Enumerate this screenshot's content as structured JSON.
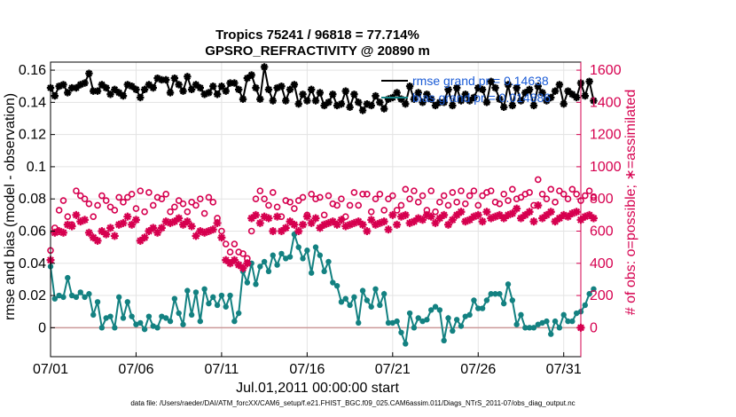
{
  "chart_data": {
    "type": "line",
    "title": "Tropics 75241 / 96818 = 77.714%",
    "subtitle": "GPSRO_REFRACTIVITY @ 20890 m",
    "xlabel": "Jul.01,2011 00:00:00 start",
    "ylabel": "rmse and bias (model - observation)",
    "y2label": "# of obs: o=possible; ∗=assimilated",
    "x_ticks": [
      "07/01",
      "07/06",
      "07/11",
      "07/16",
      "07/21",
      "07/26",
      "07/31"
    ],
    "x_tick_days": [
      0,
      5,
      10,
      15,
      20,
      25,
      30
    ],
    "xlim": [
      0,
      31
    ],
    "ylim": [
      -0.018,
      0.165
    ],
    "y_ticks": [
      "0.16",
      "0.14",
      "0.12",
      "0.1",
      "0.08",
      "0.06",
      "0.04",
      "0.02",
      "0"
    ],
    "y_tick_values": [
      0.16,
      0.14,
      0.12,
      0.1,
      0.08,
      0.06,
      0.04,
      0.02,
      0
    ],
    "y2lim": [
      -180,
      1650
    ],
    "y2_ticks": [
      "1600",
      "1400",
      "1200",
      "1000",
      "800",
      "600",
      "400",
      "200",
      "0"
    ],
    "y2_tick_values": [
      1600,
      1400,
      1200,
      1000,
      800,
      600,
      400,
      200,
      0
    ],
    "legend": [
      "rmse grand pr = 0.14638",
      "bias grand pr = 0.014886"
    ],
    "footnote": "data file: /Users/raeder/DAI/ATM_forcXX/CAM6_setup/f.e21.FHIST_BGC.f09_025.CAM6assim.011/Diags_NTrS_2011-07/obs_diag_output.nc",
    "grid": true,
    "step_days": 0.25,
    "series": [
      {
        "name": "rmse",
        "color": "#000000",
        "marker": "star",
        "axis": "left",
        "values": [
          0.149,
          0.144,
          0.15,
          0.151,
          0.146,
          0.149,
          0.149,
          0.151,
          0.152,
          0.158,
          0.147,
          0.147,
          0.151,
          0.149,
          0.145,
          0.148,
          0.146,
          0.144,
          0.151,
          0.15,
          0.148,
          0.143,
          0.148,
          0.151,
          0.149,
          0.155,
          0.154,
          0.154,
          0.146,
          0.155,
          0.151,
          0.147,
          0.156,
          0.148,
          0.151,
          0.149,
          0.145,
          0.146,
          0.15,
          0.145,
          0.15,
          0.147,
          0.152,
          0.152,
          0.148,
          0.142,
          0.155,
          0.157,
          0.149,
          0.142,
          0.162,
          0.148,
          0.141,
          0.149,
          0.15,
          0.141,
          0.148,
          0.151,
          0.139,
          0.145,
          0.141,
          0.148,
          0.141,
          0.146,
          0.138,
          0.14,
          0.145,
          0.138,
          0.139,
          0.147,
          0.137,
          0.145,
          0.14,
          0.135,
          0.139,
          0.138,
          0.144,
          0.14,
          0.136,
          0.142,
          0.143,
          0.146,
          0.142,
          0.139,
          0.15,
          0.142,
          0.146,
          0.14,
          0.145,
          0.142,
          0.138,
          0.14,
          0.14,
          0.148,
          0.138,
          0.149,
          0.141,
          0.145,
          0.141,
          0.143,
          0.149,
          0.148,
          0.14,
          0.153,
          0.149,
          0.142,
          0.137,
          0.151,
          0.138,
          0.149,
          0.141,
          0.146,
          0.148,
          0.138,
          0.15,
          0.146,
          0.141,
          0.143,
          0.147,
          0.151,
          0.139,
          0.147,
          0.145,
          0.143,
          0.152,
          0.144,
          0.153,
          0.141
        ]
      },
      {
        "name": "bias",
        "color": "#138181",
        "marker": "dot",
        "axis": "left",
        "values": [
          0.038,
          0.018,
          0.02,
          0.019,
          0.031,
          0.02,
          0.019,
          0.022,
          0.019,
          0.021,
          0.008,
          0.016,
          0.0,
          0.006,
          0.007,
          0.0,
          0.019,
          0.006,
          0.016,
          0.007,
          0.002,
          0.003,
          -0.001,
          0.007,
          0.001,
          0.0,
          0.007,
          0.006,
          0.004,
          0.018,
          0.009,
          0.002,
          0.023,
          0.008,
          0.022,
          0.004,
          0.024,
          0.015,
          0.019,
          0.014,
          0.02,
          0.013,
          0.02,
          0.004,
          0.009,
          0.035,
          0.028,
          0.04,
          0.027,
          0.038,
          0.041,
          0.035,
          0.045,
          0.039,
          0.046,
          0.043,
          0.044,
          0.058,
          0.05,
          0.043,
          0.048,
          0.034,
          0.05,
          0.045,
          0.035,
          0.041,
          0.028,
          0.026,
          0.016,
          0.018,
          0.014,
          0.019,
          0.003,
          0.023,
          0.017,
          0.013,
          0.024,
          0.014,
          0.021,
          0.003,
          0.003,
          0.004,
          -0.003,
          -0.01,
          0.009,
          0.0,
          0.006,
          0.004,
          0.005,
          0.011,
          0.013,
          0.011,
          -0.008,
          0.006,
          -0.002,
          0.005,
          0.001,
          0.007,
          0.008,
          0.017,
          0.012,
          0.012,
          0.017,
          0.021,
          0.021,
          0.021,
          0.015,
          0.027,
          0.017,
          0.002,
          0.008,
          0.0,
          0.0,
          0.0,
          0.002,
          0.003,
          0.004,
          -0.004,
          0.004,
          0.0,
          0.008,
          0.004,
          0.004,
          0.009,
          0.01,
          0.014,
          0.021,
          0.024
        ]
      },
      {
        "name": "possible",
        "color": "#d6004f",
        "marker": "circle",
        "axis": "right",
        "values": [
          480,
          620,
          730,
          790,
          690,
          640,
          850,
          820,
          800,
          770,
          690,
          760,
          820,
          790,
          750,
          730,
          810,
          780,
          810,
          830,
          740,
          850,
          720,
          840,
          760,
          810,
          800,
          830,
          720,
          750,
          790,
          770,
          720,
          780,
          760,
          800,
          710,
          810,
          780,
          680,
          600,
          520,
          470,
          520,
          470,
          460,
          430,
          600,
          800,
          850,
          800,
          760,
          840,
          750,
          690,
          790,
          780,
          740,
          790,
          810,
          700,
          830,
          800,
          810,
          700,
          820,
          770,
          760,
          800,
          690,
          760,
          840,
          760,
          830,
          830,
          720,
          800,
          830,
          730,
          800,
          820,
          730,
          760,
          860,
          800,
          850,
          780,
          820,
          730,
          850,
          720,
          780,
          820,
          760,
          840,
          780,
          850,
          770,
          820,
          850,
          760,
          820,
          840,
          850,
          780,
          770,
          830,
          790,
          860,
          800,
          810,
          830,
          840,
          760,
          920,
          830,
          800,
          860,
          780,
          850,
          830,
          800,
          860,
          830,
          790,
          820,
          850,
          810
        ]
      },
      {
        "name": "assimilated",
        "color": "#d6004f",
        "marker": "star",
        "axis": "right",
        "values": [
          420,
          590,
          600,
          590,
          640,
          630,
          700,
          660,
          670,
          590,
          560,
          540,
          600,
          580,
          620,
          570,
          640,
          650,
          690,
          640,
          670,
          540,
          560,
          600,
          620,
          590,
          620,
          660,
          650,
          660,
          680,
          640,
          660,
          630,
          570,
          600,
          590,
          600,
          610,
          650,
          560,
          420,
          400,
          420,
          390,
          370,
          400,
          680,
          700,
          650,
          690,
          680,
          600,
          690,
          600,
          620,
          660,
          640,
          600,
          640,
          690,
          650,
          680,
          620,
          640,
          650,
          660,
          640,
          670,
          630,
          640,
          650,
          660,
          640,
          600,
          670,
          640,
          650,
          660,
          610,
          700,
          640,
          690,
          700,
          650,
          660,
          680,
          670,
          700,
          690,
          650,
          680,
          700,
          640,
          670,
          700,
          720,
          660,
          670,
          690,
          700,
          660,
          720,
          680,
          690,
          700,
          680,
          700,
          710,
          740,
          680,
          700,
          720,
          660,
          760,
          680,
          700,
          720,
          660,
          680,
          700,
          690,
          710,
          720,
          670,
          690,
          700,
          680
        ]
      }
    ]
  }
}
